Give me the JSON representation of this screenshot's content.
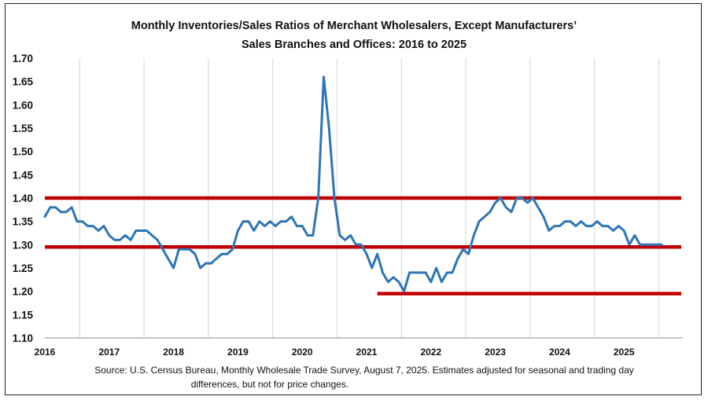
{
  "chart_data": {
    "type": "line",
    "title": [
      "Monthly Inventories/Sales Ratios of Merchant Wholesalers, Except Manufacturers’",
      "Sales Branches and Offices: 2016 to 2025"
    ],
    "source": [
      "Source: U.S. Census Bureau, Monthly Wholesale Trade Survey, August 7, 2025. Estimates adjusted for seasonal and trading day",
      "differences, but not for price changes."
    ],
    "y_ticks": [
      "1.70",
      "1.65",
      "1.60",
      "1.55",
      "1.50",
      "1.45",
      "1.40",
      "1.35",
      "1.30",
      "1.25",
      "1.20",
      "1.15",
      "1.10"
    ],
    "x_ticks": [
      "2016",
      "2017",
      "2018",
      "2019",
      "2020",
      "2021",
      "2022",
      "2023",
      "2024",
      "2025"
    ],
    "ylim": [
      1.1,
      1.7
    ],
    "x_start": "2016-01",
    "grid": "vertical-year-lines",
    "series_color": "#2E75B6",
    "reference_color": "#C00000",
    "series": [
      {
        "values": [
          1.36,
          1.38,
          1.38,
          1.37,
          1.37,
          1.38,
          1.35,
          1.35,
          1.34,
          1.34,
          1.33,
          1.34,
          1.32,
          1.31,
          1.31,
          1.32,
          1.31,
          1.33,
          1.33,
          1.33,
          1.32,
          1.31,
          1.29,
          1.27,
          1.25,
          1.29,
          1.29,
          1.29,
          1.28,
          1.25,
          1.26,
          1.26,
          1.27,
          1.28,
          1.28,
          1.29,
          1.33,
          1.35,
          1.35,
          1.33,
          1.35,
          1.34,
          1.35,
          1.34,
          1.35,
          1.35,
          1.36,
          1.34,
          1.34,
          1.32,
          1.32,
          1.4,
          1.66,
          1.55,
          1.4,
          1.32,
          1.31,
          1.32,
          1.3,
          1.3,
          1.28,
          1.25,
          1.28,
          1.24,
          1.22,
          1.23,
          1.22,
          1.2,
          1.24,
          1.24,
          1.24,
          1.24,
          1.22,
          1.25,
          1.22,
          1.24,
          1.24,
          1.27,
          1.29,
          1.28,
          1.32,
          1.35,
          1.36,
          1.37,
          1.39,
          1.4,
          1.38,
          1.37,
          1.4,
          1.4,
          1.39,
          1.4,
          1.38,
          1.36,
          1.33,
          1.34,
          1.34,
          1.35,
          1.35,
          1.34,
          1.35,
          1.34,
          1.34,
          1.35,
          1.34,
          1.34,
          1.33,
          1.34,
          1.33,
          1.3,
          1.32,
          1.3,
          1.3,
          1.3,
          1.3,
          1.3
        ]
      }
    ],
    "reference_lines": [
      {
        "y": 1.4,
        "from": "start",
        "to": "end"
      },
      {
        "y": 1.295,
        "from": "start",
        "to": "end"
      },
      {
        "y": 1.195,
        "from": "2021-03",
        "to": "end"
      }
    ]
  }
}
